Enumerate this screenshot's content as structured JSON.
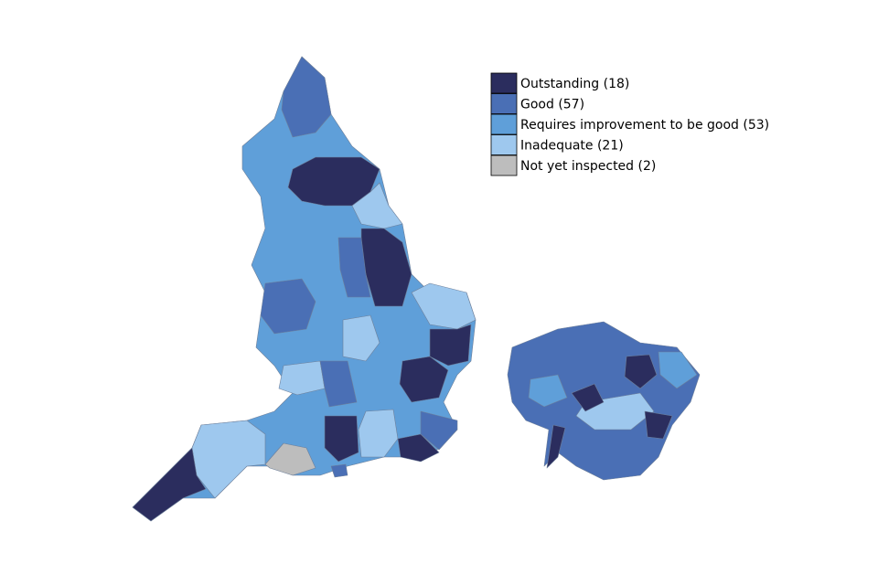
{
  "legend": {
    "items": [
      {
        "label": "Outstanding (18)",
        "color": "#2b2d5e"
      },
      {
        "label": "Good (57)",
        "color": "#4a6fb5"
      },
      {
        "label": "Requires improvement to be good (53)",
        "color": "#5f9fd9"
      },
      {
        "label": "Inadequate (21)",
        "color": "#9ec8ee"
      },
      {
        "label": "Not yet inspected (2)",
        "color": "#bdbdbd"
      }
    ]
  }
}
